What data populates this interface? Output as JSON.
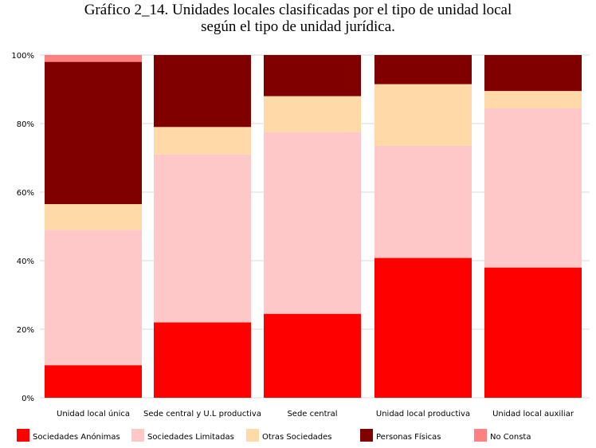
{
  "chart_data": {
    "type": "bar",
    "stacked": true,
    "normalized": true,
    "title": "Gráfico 2_14. Unidades locales clasificadas por el tipo de unidad local",
    "subtitle": "según el tipo de unidad jurídica.",
    "categories": [
      "Unidad local única",
      "Sede central y U.L productiva",
      "Sede central",
      "Unidad local productiva",
      "Unidad local auxiliar"
    ],
    "ylim": [
      0,
      100
    ],
    "yticks": [
      "0%",
      "20%",
      "40%",
      "60%",
      "80%",
      "100%"
    ],
    "grid": true,
    "legend_position": "bottom",
    "series": [
      {
        "name": "Sociedades Anónimas",
        "color": "#ff0000",
        "values": [
          9.5,
          22,
          24.5,
          40.8,
          38
        ]
      },
      {
        "name": "Sociedades Limitadas",
        "color": "#ffc8c8",
        "values": [
          39.5,
          49,
          53,
          32.7,
          46.5
        ]
      },
      {
        "name": "Otras Sociedades",
        "color": "#ffdaa8",
        "values": [
          7.5,
          8,
          10.5,
          18,
          5
        ]
      },
      {
        "name": "Personas Físicas",
        "color": "#800000",
        "values": [
          41.5,
          21,
          12,
          8.5,
          10.5
        ]
      },
      {
        "name": "No Consta",
        "color": "#ff8080",
        "values": [
          2,
          0,
          0,
          0,
          0
        ]
      }
    ]
  }
}
